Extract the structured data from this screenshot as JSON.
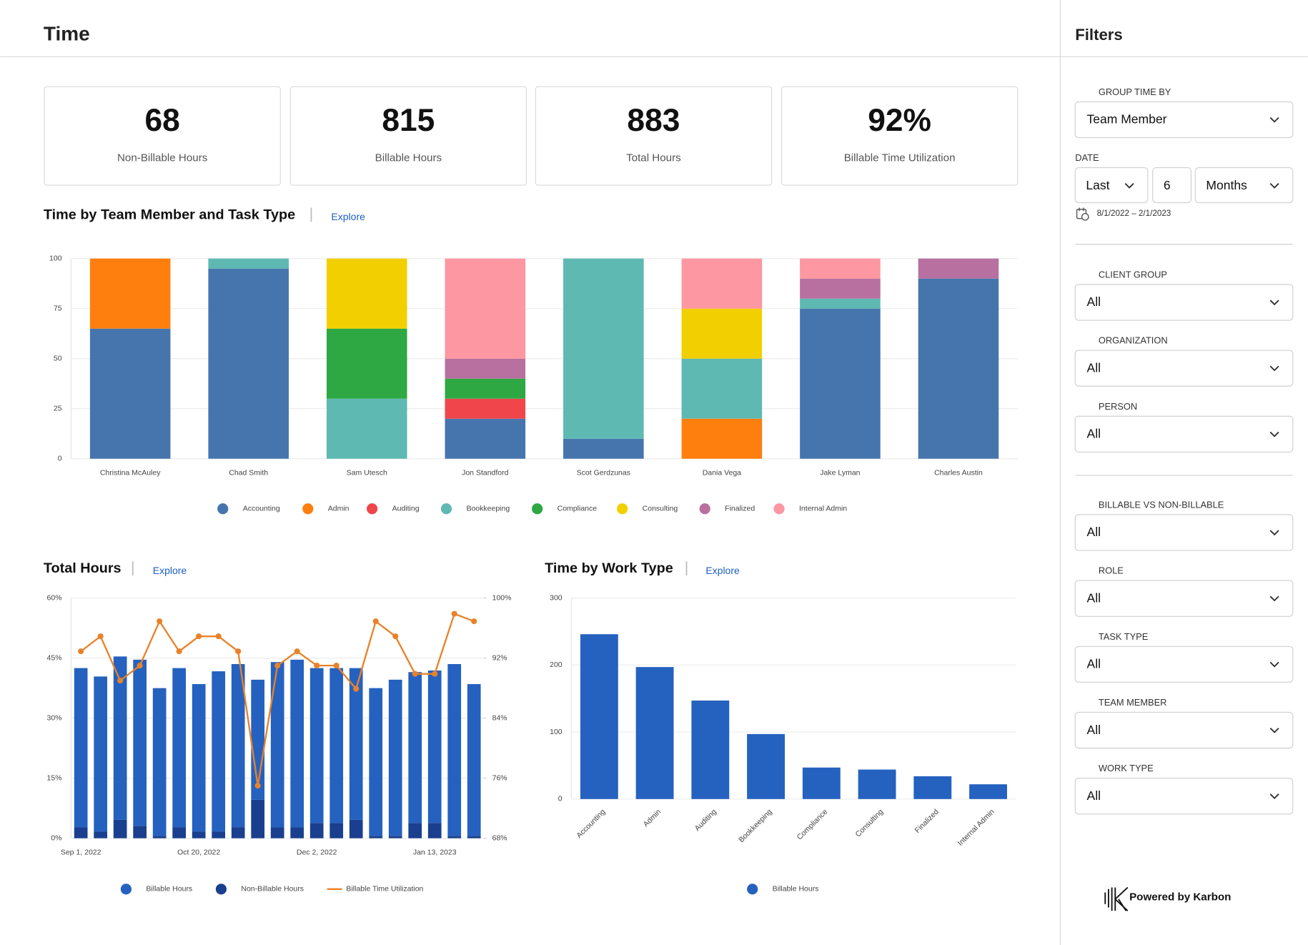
{
  "header": {
    "title": "Time"
  },
  "kpis": [
    {
      "value": 68,
      "label": "Non-Billable Hours"
    },
    {
      "value": 815,
      "label": "Billable Hours"
    },
    {
      "value": 883,
      "label": "Total Hours"
    },
    {
      "value": 92,
      "value_label": "92%",
      "label": "Billable Time Utilization"
    }
  ],
  "chart_data": [
    {
      "type": "bar",
      "stacked": true,
      "title": "Time by Team Member and Task Type",
      "action": "Explore",
      "categories": [
        "Christina McAuley",
        "Chad Smith",
        "Sam Utesch",
        "Jon Standford",
        "Scot Gerdzunas",
        "Dania Vega",
        "Jake Lyman",
        "Charles Austin"
      ],
      "series": [
        {
          "name": "Accounting",
          "color": "#4675ae",
          "values": [
            65,
            95,
            0,
            20,
            10,
            0,
            75,
            90
          ]
        },
        {
          "name": "Admin",
          "color": "#ff7f0e",
          "values": [
            35,
            0,
            0,
            0,
            0,
            20,
            0,
            0
          ]
        },
        {
          "name": "Auditing",
          "color": "#f0464b",
          "values": [
            0,
            0,
            0,
            10,
            0,
            0,
            0,
            0
          ]
        },
        {
          "name": "Bookkeeping",
          "color": "#5eb9b2",
          "values": [
            0,
            5,
            30,
            0,
            90,
            30,
            5,
            0
          ]
        },
        {
          "name": "Compliance",
          "color": "#2ea842",
          "values": [
            0,
            0,
            35,
            10,
            0,
            0,
            0,
            0
          ]
        },
        {
          "name": "Consulting",
          "color": "#f2cf00",
          "values": [
            0,
            0,
            35,
            0,
            0,
            25,
            0,
            0
          ]
        },
        {
          "name": "Finalized",
          "color": "#b7709f",
          "values": [
            0,
            0,
            0,
            10,
            0,
            0,
            10,
            10
          ]
        },
        {
          "name": "Internal Admin",
          "color": "#fd97a1",
          "values": [
            0,
            0,
            0,
            50,
            0,
            25,
            10,
            0
          ]
        }
      ],
      "ylim": [
        0,
        100
      ],
      "yticks": [
        0,
        25,
        50,
        75,
        100
      ],
      "grid": true
    },
    {
      "type": "bar",
      "stacked": true,
      "title": "Total Hours",
      "action": "Explore",
      "categories": [
        "Sep 1, 2022",
        null,
        null,
        null,
        null,
        null,
        "Oct 20, 2022",
        null,
        null,
        null,
        null,
        null,
        "Dec 2, 2022",
        null,
        null,
        null,
        null,
        null,
        "Jan 13, 2023",
        null,
        null
      ],
      "series": [
        {
          "name": "Billable Hours",
          "color": "#2561bf",
          "values": [
            39.8,
            38.7,
            40.8,
            41.5,
            36.9,
            39.8,
            36.8,
            40,
            40.8,
            30,
            41.3,
            41.9,
            38.7,
            38.7,
            37.9,
            36.9,
            39,
            37.7,
            38.1,
            42.9,
            37.9
          ]
        },
        {
          "name": "Non-Billable Hours",
          "color": "#1a3f8e",
          "values": [
            2.7,
            1.7,
            4.6,
            3.1,
            0.6,
            2.7,
            1.7,
            1.7,
            2.7,
            9.6,
            2.7,
            2.7,
            3.8,
            3.8,
            4.6,
            0.6,
            0.6,
            3.8,
            3.8,
            0.6,
            0.6
          ]
        },
        {
          "name": "Billable Time Utilization",
          "type": "line",
          "axis": "y2",
          "color": "#e8822a",
          "values": [
            92.9,
            94.9,
            89,
            91,
            96.9,
            92.9,
            94.9,
            94.9,
            92.9,
            75,
            91,
            92.9,
            91,
            91,
            87.9,
            96.9,
            94.9,
            89.9,
            89.9,
            97.9,
            96.9
          ]
        }
      ],
      "ylim": [
        0,
        60
      ],
      "yticks": [
        {
          "value": 0,
          "label": "0%"
        },
        {
          "value": 15,
          "label": "15%"
        },
        {
          "value": 30,
          "label": "30%"
        },
        {
          "value": 45,
          "label": "45%"
        },
        {
          "value": 60,
          "label": "60%"
        }
      ],
      "y2lim": [
        68,
        100
      ],
      "y2ticks": [
        {
          "value": 68,
          "label": "68%"
        },
        {
          "value": 76,
          "label": "76%"
        },
        {
          "value": 84,
          "label": "84%"
        },
        {
          "value": 92,
          "label": "92%"
        },
        {
          "value": 100,
          "label": "100%"
        }
      ],
      "grid": true
    },
    {
      "type": "bar",
      "title": "Time by Work Type",
      "action": "Explore",
      "categories": [
        "Accounting",
        "Admin",
        "Auditing",
        "Bookkeeping",
        "Compliance",
        "Consulting",
        "Finalized",
        "Internal Admin"
      ],
      "series": [
        {
          "name": "Billable Hours",
          "color": "#2561bf",
          "values": [
            246,
            197,
            147,
            97,
            47,
            44,
            34,
            22
          ]
        }
      ],
      "ylim": [
        0,
        300
      ],
      "yticks": [
        0,
        100,
        200,
        300
      ],
      "grid": true
    }
  ],
  "filters": {
    "title": "Filters",
    "fields": [
      {
        "label": "GROUP TIME BY",
        "value": "Team Member"
      },
      {
        "label": "DATE",
        "values": [
          "Last",
          6,
          "Months"
        ],
        "range": "8/1/2022 – 2/1/2023"
      },
      {
        "label": "CLIENT GROUP",
        "value": "All"
      },
      {
        "label": "ORGANIZATION",
        "value": "All"
      },
      {
        "label": "PERSON",
        "value": "All"
      },
      {
        "label": "BILLABLE VS NON-BILLABLE",
        "value": "All"
      },
      {
        "label": "ROLE",
        "value": "All"
      },
      {
        "label": "TASK TYPE",
        "value": "All"
      },
      {
        "label": "TEAM MEMBER",
        "value": "All"
      },
      {
        "label": "WORK TYPE",
        "value": "All"
      }
    ]
  },
  "footer": {
    "text": "Powered by Karbon"
  }
}
